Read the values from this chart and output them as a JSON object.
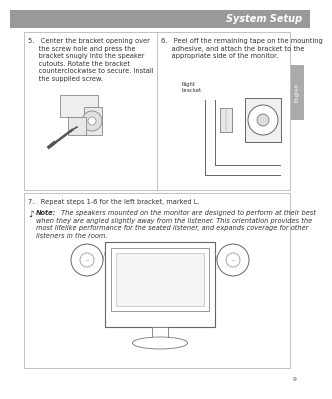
{
  "bg_color": "#ffffff",
  "header_bg": "#999999",
  "header_text": "System Setup",
  "header_text_color": "#ffffff",
  "sidebar_bg": "#aaaaaa",
  "sidebar_text": "English",
  "page_num": "9",
  "text_color": "#333333",
  "line_color": "#888888",
  "box_edge_color": "#aaaaaa",
  "step5_text_lines": [
    "5.   Center the bracket opening over",
    "     the screw hole and press the",
    "     bracket snugly into the speaker",
    "     cutouts. Rotate the bracket",
    "     counterclockwise to secure. Install",
    "     the supplied screw."
  ],
  "step6_text_lines": [
    "6.   Peel off the remaining tape on the mounting",
    "     adhesive, and attach the bracket to the",
    "     appropriate side of the monitor."
  ],
  "step7_text": "7.   Repeat steps 1-6 for the left bracket, marked L.",
  "note_text_lines": [
    "Note: The speakers mounted on the monitor are designed to perform at their best",
    "when they are angled slightly away from the listener. This orientation provides the",
    "most lifelike performance for the seated listener, and expands coverage for other",
    "listeners in the room."
  ],
  "text_fontsize": 4.8,
  "header_fontsize": 7.0
}
